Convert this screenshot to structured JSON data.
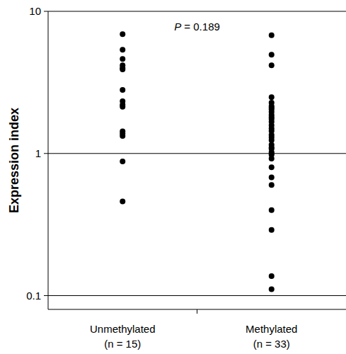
{
  "chart_data": {
    "type": "scatter",
    "y_label": "Expression index",
    "annotation": "P = 0.189",
    "categories": [
      "Unmethylated\n(n = 15)",
      "Methylated\n(n = 33)"
    ],
    "values": [
      [
        6.9,
        5.37,
        4.62,
        4.17,
        4.0,
        3.9,
        2.8,
        2.33,
        2.2,
        2.13,
        1.43,
        1.38,
        1.33,
        0.88,
        0.46
      ],
      [
        6.8,
        4.95,
        4.17,
        2.49,
        2.28,
        2.15,
        2.1,
        2.05,
        1.96,
        1.87,
        1.8,
        1.75,
        1.67,
        1.58,
        1.5,
        1.44,
        1.35,
        1.3,
        1.24,
        1.15,
        1.1,
        1.08,
        1.02,
        1.0,
        0.98,
        0.92,
        0.8,
        0.68,
        0.6,
        0.4,
        0.29,
        0.137,
        0.111
      ]
    ],
    "color": "#000000",
    "marker": "circle",
    "ylim": [
      0.08,
      10
    ],
    "yticks": [
      0.1,
      1,
      10
    ],
    "log": "y",
    "grid": true
  }
}
